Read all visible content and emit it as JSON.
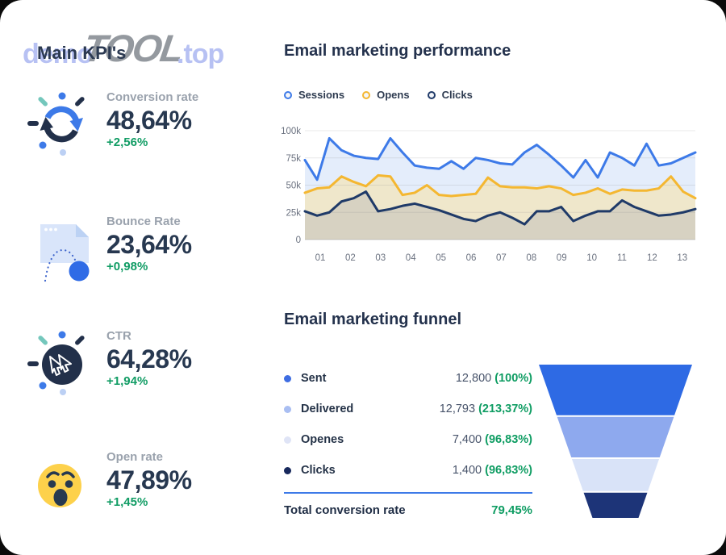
{
  "watermark": {
    "prefix": "demo",
    "brand": "TOOL",
    "suffix": ".top"
  },
  "left_panel": {
    "title": "Main KPI's",
    "kpis": [
      {
        "icon": "sync-arrows-icon",
        "label": "Conversion rate",
        "value": "48,64%",
        "delta": "+2,56%"
      },
      {
        "icon": "bounce-page-icon",
        "label": "Bounce Rate",
        "value": "23,64%",
        "delta": "+0,98%"
      },
      {
        "icon": "cursor-click-icon",
        "label": "CTR",
        "value": "64,28%",
        "delta": "+1,94%"
      },
      {
        "icon": "wow-emoji-icon",
        "label": "Open rate",
        "value": "47,89%",
        "delta": "+1,45%"
      }
    ],
    "delta_color": "#109c64",
    "value_color": "#273850",
    "label_color": "#9aa2ad"
  },
  "performance": {
    "title": "Email marketing performance",
    "legend": [
      {
        "label": "Sessions",
        "color": "#3d7ae8"
      },
      {
        "label": "Opens",
        "color": "#f4b731"
      },
      {
        "label": "Clicks",
        "color": "#1f3a68"
      }
    ]
  },
  "chart_data": [
    {
      "type": "area",
      "title": "Email marketing performance",
      "x_ticks": [
        "01",
        "02",
        "03",
        "04",
        "05",
        "06",
        "07",
        "08",
        "09",
        "10",
        "11",
        "12",
        "13"
      ],
      "y_ticks": [
        "0",
        "25k",
        "50k",
        "75k",
        "100k"
      ],
      "ylim": [
        0,
        100
      ],
      "y_unit": "k (thousands)",
      "grid": true,
      "legend_position": "top",
      "series": [
        {
          "name": "Sessions",
          "color": "#3d7ae8",
          "fill": "#e4edfb",
          "values": [
            73,
            55,
            93,
            82,
            77,
            75,
            74,
            93,
            80,
            68,
            66,
            65,
            72,
            65,
            75,
            73,
            70,
            69,
            80,
            87,
            78,
            68,
            57,
            73,
            57,
            80,
            75,
            68,
            88,
            68,
            70,
            75,
            80
          ]
        },
        {
          "name": "Opens",
          "color": "#f4b731",
          "fill": "#efe7cb",
          "values": [
            43,
            47,
            48,
            58,
            53,
            49,
            59,
            58,
            41,
            43,
            50,
            41,
            40,
            41,
            42,
            57,
            49,
            48,
            48,
            47,
            49,
            47,
            41,
            43,
            47,
            42,
            46,
            45,
            45,
            47,
            58,
            44,
            38
          ]
        },
        {
          "name": "Clicks",
          "color": "#1f3a68",
          "fill": "#d7d2c2",
          "values": [
            26,
            22,
            25,
            35,
            38,
            44,
            26,
            28,
            31,
            33,
            30,
            27,
            23,
            19,
            17,
            22,
            25,
            20,
            14,
            26,
            26,
            30,
            17,
            22,
            26,
            26,
            36,
            30,
            26,
            22,
            23,
            25,
            28
          ]
        }
      ]
    },
    {
      "type": "bar",
      "subtype": "funnel",
      "title": "Email marketing funnel",
      "categories": [
        "Sent",
        "Delivered",
        "Openes",
        "Clicks"
      ],
      "values": [
        12800,
        12793,
        7400,
        1400
      ],
      "percentages": [
        "100%",
        "213,37%",
        "96,83%",
        "96,83%"
      ],
      "total_conversion_rate": "79,45%"
    }
  ],
  "funnel": {
    "title": "Email marketing funnel",
    "rows": [
      {
        "label": "Sent",
        "value": "12,800",
        "pct": "(100%)",
        "dot_color": "#3e6de2"
      },
      {
        "label": "Delivered",
        "value": "12,793",
        "pct": "(213,37%)",
        "dot_color": "#a9bef2"
      },
      {
        "label": "Openes",
        "value": "7,400",
        "pct": "(96,83%)",
        "dot_color": "#dfe4f6"
      },
      {
        "label": "Clicks",
        "value": "1,400",
        "pct": "(96,83%)",
        "dot_color": "#17285c"
      }
    ],
    "total_label": "Total conversion rate",
    "total_value": "79,45%",
    "divider_color": "#3d7ae8",
    "segments": [
      {
        "name": "Sent",
        "color": "#2e6ae4",
        "h": 0.33
      },
      {
        "name": "Delivered",
        "color": "#8ea9ee",
        "h": 0.275
      },
      {
        "name": "Openes",
        "color": "#d9e3f8",
        "h": 0.22
      },
      {
        "name": "Clicks",
        "color": "#1d3478",
        "h": 0.175
      }
    ]
  }
}
